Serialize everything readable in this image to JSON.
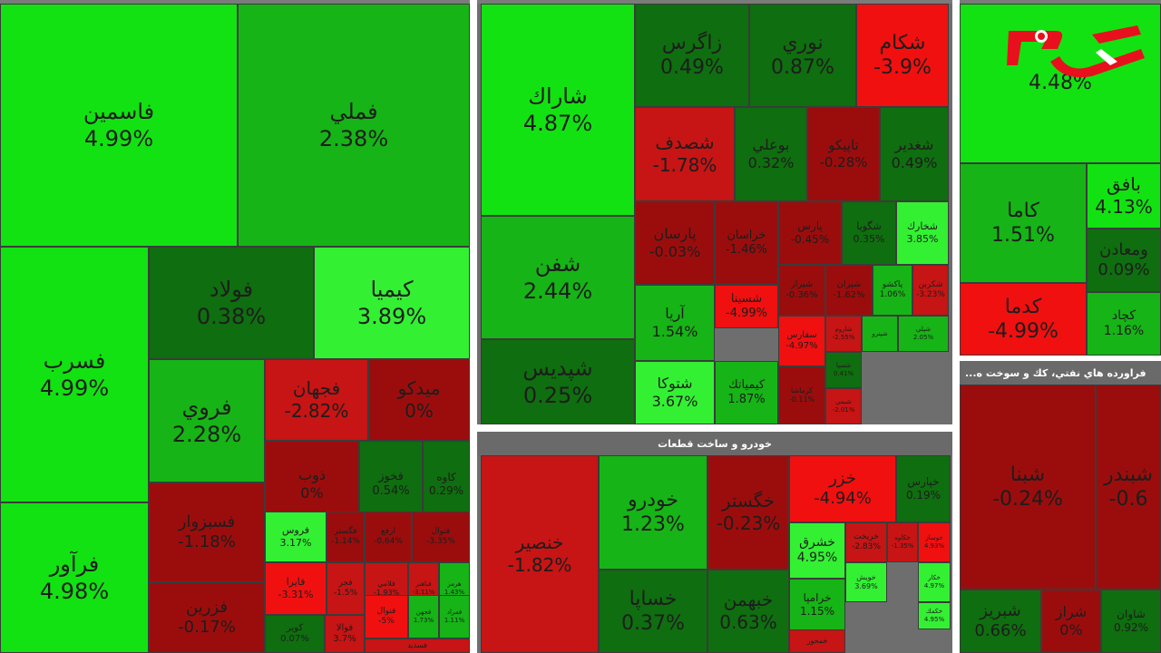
{
  "colors": {
    "up_strong": "#12e212",
    "up_bright": "#33f033",
    "up_mid": "#16b416",
    "up_dark": "#0f6e0f",
    "down_strong": "#f01010",
    "down_mid": "#c71414",
    "down_dark": "#9b0d0d",
    "logo_red": "#e8101c"
  },
  "sections": {
    "auto_header": "خودرو و ساخت قطعات",
    "oil_header": "...فراورده هاي نفتي، كك و سوخت ه"
  },
  "chart_data": {
    "type": "treemap",
    "metric": "daily percent change",
    "panels": [
      {
        "id": "metals",
        "cells": [
          {
            "name": "فاسمين",
            "value": "4.99%",
            "color": "#12e212"
          },
          {
            "name": "فملي",
            "value": "2.38%",
            "color": "#16b416"
          },
          {
            "name": "فسرب",
            "value": "4.99%",
            "color": "#12e212"
          },
          {
            "name": "فرآور",
            "value": "4.98%",
            "color": "#12e212"
          },
          {
            "name": "فولاد",
            "value": "0.38%",
            "color": "#0f6e0f"
          },
          {
            "name": "كيميا",
            "value": "3.89%",
            "color": "#33f033"
          },
          {
            "name": "فروي",
            "value": "2.28%",
            "color": "#16b416"
          },
          {
            "name": "فجهان",
            "value": "-2.82%",
            "color": "#c71414"
          },
          {
            "name": "ميدكو",
            "value": "0%",
            "color": "#9b0d0d"
          },
          {
            "name": "فسبزوار",
            "value": "-1.18%",
            "color": "#9b0d0d"
          },
          {
            "name": "ذوب",
            "value": "0%",
            "color": "#9b0d0d"
          },
          {
            "name": "فخوز",
            "value": "0.54%",
            "color": "#0f6e0f"
          },
          {
            "name": "كاوه",
            "value": "0.29%",
            "color": "#0f6e0f"
          },
          {
            "name": "فزرين",
            "value": "-0.17%",
            "color": "#9b0d0d"
          },
          {
            "name": "فروس",
            "value": "3.17%",
            "color": "#33f033"
          },
          {
            "name": "فگستر",
            "value": "-1.14%",
            "color": "#9b0d0d"
          },
          {
            "name": "ارفع",
            "value": "-0.64%",
            "color": "#9b0d0d"
          },
          {
            "name": "فنوال",
            "value": "-3.35%",
            "color": "#9b0d0d"
          },
          {
            "name": "فايرا",
            "value": "-3.31%",
            "color": "#f01010"
          },
          {
            "name": "فجر",
            "value": "-1.5%",
            "color": "#c71414"
          },
          {
            "name": "فلامي",
            "value": "-1.93%",
            "color": "#c71414"
          },
          {
            "name": "فباهنر",
            "value": "-3.11%",
            "color": "#c71414"
          },
          {
            "name": "هرمز",
            "value": "1.43%",
            "color": "#16b416"
          },
          {
            "name": "فنوال",
            "value": "-5%",
            "color": "#f01010"
          },
          {
            "name": "فجهن",
            "value": "1.73%",
            "color": "#16b416"
          },
          {
            "name": "فمراد",
            "value": "1.11%",
            "color": "#16b416"
          },
          {
            "name": "كوير",
            "value": "0.07%",
            "color": "#0f6e0f"
          },
          {
            "name": "فوالا",
            "value": "3.7%",
            "color": "#c71414"
          },
          {
            "name": "فسديد",
            "value": "",
            "color": "#c71414"
          }
        ]
      },
      {
        "id": "chemicals",
        "cells": [
          {
            "name": "شاراك",
            "value": "4.87%",
            "color": "#12e212"
          },
          {
            "name": "شفن",
            "value": "2.44%",
            "color": "#16b416"
          },
          {
            "name": "شپديس",
            "value": "0.25%",
            "color": "#0f6e0f"
          },
          {
            "name": "زاگرس",
            "value": "0.49%",
            "color": "#0f6e0f"
          },
          {
            "name": "نوري",
            "value": "0.87%",
            "color": "#0f6e0f"
          },
          {
            "name": "شكام",
            "value": "-3.9%",
            "color": "#f01010"
          },
          {
            "name": "شصدف",
            "value": "-1.78%",
            "color": "#c71414"
          },
          {
            "name": "بوعلي",
            "value": "0.32%",
            "color": "#0f6e0f"
          },
          {
            "name": "تاپيكو",
            "value": "-0.28%",
            "color": "#9b0d0d"
          },
          {
            "name": "شغدير",
            "value": "0.49%",
            "color": "#0f6e0f"
          },
          {
            "name": "پارسان",
            "value": "-0.03%",
            "color": "#9b0d0d"
          },
          {
            "name": "خراسان",
            "value": "-1.46%",
            "color": "#9b0d0d"
          },
          {
            "name": "پارس",
            "value": "-0.45%",
            "color": "#9b0d0d"
          },
          {
            "name": "شگويا",
            "value": "0.35%",
            "color": "#0f6e0f"
          },
          {
            "name": "شخارك",
            "value": "3.85%",
            "color": "#33f033"
          },
          {
            "name": "آريا",
            "value": "1.54%",
            "color": "#16b416"
          },
          {
            "name": "شسينا",
            "value": "-4.99%",
            "color": "#f01010"
          },
          {
            "name": "شيراز",
            "value": "-0.36%",
            "color": "#9b0d0d"
          },
          {
            "name": "شيران",
            "value": "-1.62%",
            "color": "#9b0d0d"
          },
          {
            "name": "پاكشو",
            "value": "1.06%",
            "color": "#16b416"
          },
          {
            "name": "شكربن",
            "value": "-3.23%",
            "color": "#c71414"
          },
          {
            "name": "سفارس",
            "value": "-4.97%",
            "color": "#f01010"
          },
          {
            "name": "شاروم",
            "value": "-2.55%",
            "color": "#c71414"
          },
          {
            "name": "شپترو",
            "value": "",
            "color": "#16b416"
          },
          {
            "name": "شپلي",
            "value": "2.05%",
            "color": "#16b416"
          },
          {
            "name": "شتوكا",
            "value": "3.67%",
            "color": "#33f033"
          },
          {
            "name": "كيمياتك",
            "value": "1.87%",
            "color": "#16b416"
          },
          {
            "name": "كرماشا",
            "value": "-0.11%",
            "color": "#9b0d0d"
          },
          {
            "name": "شسپا",
            "value": "0.41%",
            "color": "#0f6e0f"
          },
          {
            "name": "شيمي",
            "value": "-2.01%",
            "color": "#c71414"
          }
        ]
      },
      {
        "id": "auto",
        "cells": [
          {
            "name": "خنصير",
            "value": "-1.82%",
            "color": "#c71414"
          },
          {
            "name": "خودرو",
            "value": "1.23%",
            "color": "#16b416"
          },
          {
            "name": "خگستر",
            "value": "-0.23%",
            "color": "#9b0d0d"
          },
          {
            "name": "خزر",
            "value": "-4.94%",
            "color": "#f01010"
          },
          {
            "name": "خپارس",
            "value": "0.19%",
            "color": "#0f6e0f"
          },
          {
            "name": "خساپا",
            "value": "0.37%",
            "color": "#0f6e0f"
          },
          {
            "name": "خبهمن",
            "value": "0.63%",
            "color": "#0f6e0f"
          },
          {
            "name": "خشرق",
            "value": "4.95%",
            "color": "#33f033"
          },
          {
            "name": "خرامپا",
            "value": "1.15%",
            "color": "#16b416"
          },
          {
            "name": "خريخت",
            "value": "-2.83%",
            "color": "#c71414"
          },
          {
            "name": "خكاوه",
            "value": "-1.35%",
            "color": "#c71414"
          },
          {
            "name": "خوساز",
            "value": "4.93%",
            "color": "#f01010"
          },
          {
            "name": "خويش",
            "value": "3.69%",
            "color": "#33f033"
          },
          {
            "name": "خكار",
            "value": "4.97%",
            "color": "#33f033"
          },
          {
            "name": "خكمك",
            "value": "4.95%",
            "color": "#33f033"
          },
          {
            "name": "خمحور",
            "value": "",
            "color": "#c71414"
          }
        ]
      },
      {
        "id": "mining",
        "cells": [
          {
            "name": "",
            "value": "4.48%",
            "color": "#12e212"
          },
          {
            "name": "كاما",
            "value": "1.51%",
            "color": "#16b416"
          },
          {
            "name": "كدما",
            "value": "-4.99%",
            "color": "#f01010"
          },
          {
            "name": "بافق",
            "value": "4.13%",
            "color": "#12e212"
          },
          {
            "name": "ومعادن",
            "value": "0.09%",
            "color": "#0f6e0f"
          },
          {
            "name": "كچاد",
            "value": "1.16%",
            "color": "#16b416"
          }
        ]
      },
      {
        "id": "oil",
        "cells": [
          {
            "name": "شبنا",
            "value": "-0.24%",
            "color": "#9b0d0d"
          },
          {
            "name": "شبندر",
            "value": "-0.6",
            "color": "#9b0d0d"
          },
          {
            "name": "شبريز",
            "value": "0.66%",
            "color": "#0f6e0f"
          },
          {
            "name": "شراز",
            "value": "0%",
            "color": "#9b0d0d"
          },
          {
            "name": "شاوان",
            "value": "0.92%",
            "color": "#0f6e0f"
          }
        ]
      }
    ]
  }
}
